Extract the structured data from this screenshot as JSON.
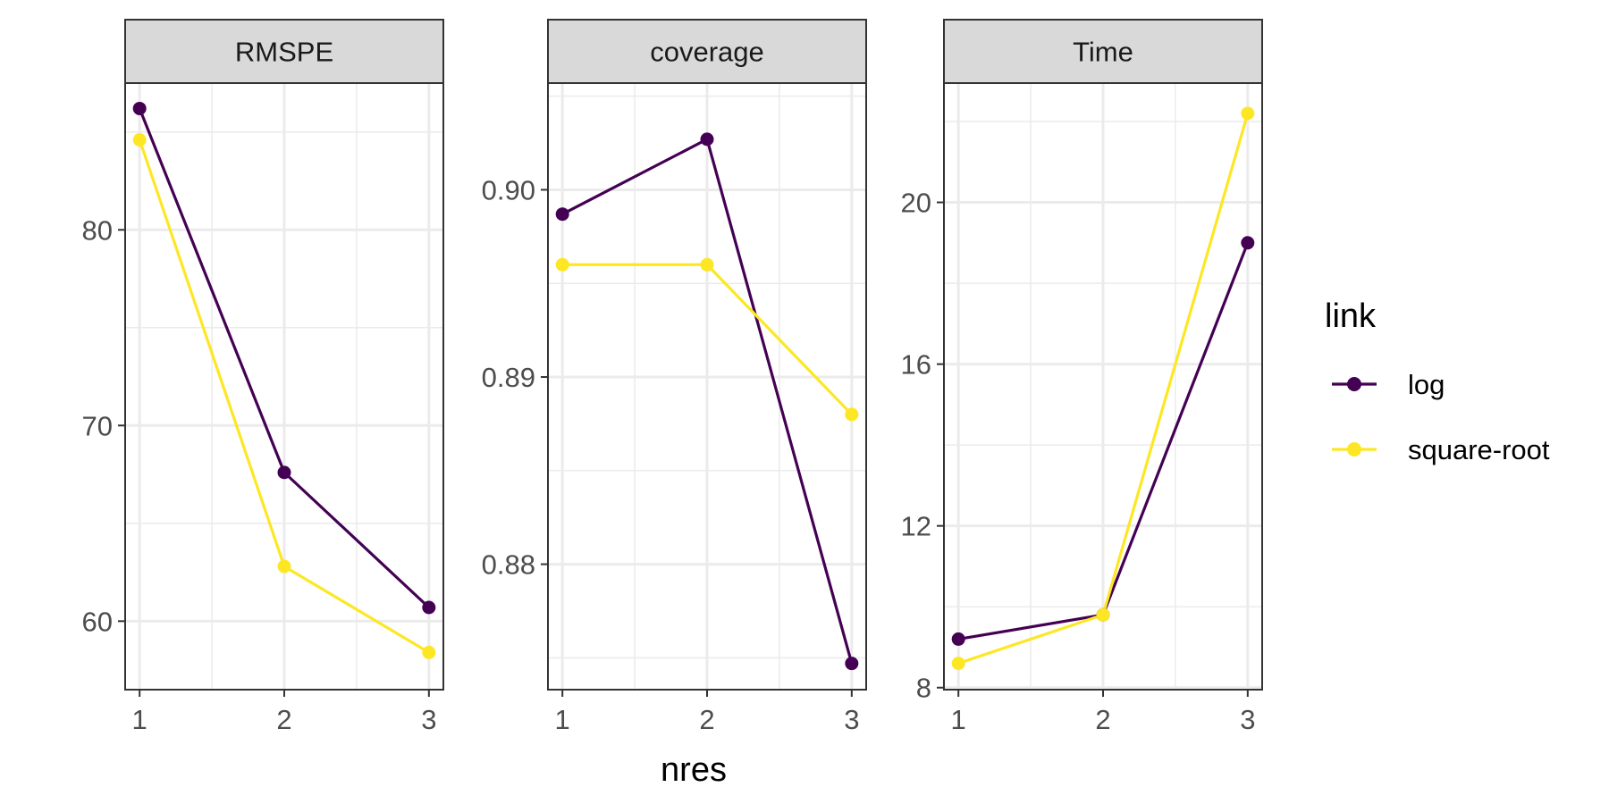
{
  "chart_data": {
    "type": "line",
    "xlabel": "nres",
    "legend": {
      "title": "link",
      "placement": "right"
    },
    "series_styles": [
      {
        "name": "log",
        "color": "#440154"
      },
      {
        "name": "square-root",
        "color": "#fde725"
      }
    ],
    "panels": [
      {
        "title": "RMSPE",
        "x": [
          1,
          2,
          3
        ],
        "ylim": [
          56.5,
          87.5
        ],
        "yticks": [
          60,
          70,
          80
        ],
        "yticklabels": [
          "60",
          "70",
          "80"
        ],
        "series": [
          {
            "name": "log",
            "values": [
              86.2,
              67.6,
              60.7
            ]
          },
          {
            "name": "square-root",
            "values": [
              84.6,
              62.8,
              58.4
            ]
          }
        ]
      },
      {
        "title": "coverage",
        "x": [
          1,
          2,
          3
        ],
        "ylim": [
          0.8733,
          0.9057
        ],
        "yticks": [
          0.88,
          0.89,
          0.9
        ],
        "yticklabels": [
          "0.88",
          "0.89",
          "0.90"
        ],
        "series": [
          {
            "name": "log",
            "values": [
              0.8987,
              0.9027,
              0.8747
            ]
          },
          {
            "name": "square-root",
            "values": [
              0.896,
              0.896,
              0.888
            ]
          }
        ]
      },
      {
        "title": "Time",
        "x": [
          1,
          2,
          3
        ],
        "ylim": [
          7.95,
          22.95
        ],
        "yticks": [
          8,
          12,
          16,
          20
        ],
        "yticklabels": [
          "8",
          "12",
          "16",
          "20"
        ],
        "series": [
          {
            "name": "log",
            "values": [
              9.2,
              9.8,
              19.0
            ]
          },
          {
            "name": "square-root",
            "values": [
              8.6,
              9.8,
              22.2
            ]
          }
        ]
      }
    ],
    "grid": true,
    "xticks": [
      1,
      2,
      3
    ],
    "xticklabels": [
      "1",
      "2",
      "3"
    ]
  }
}
